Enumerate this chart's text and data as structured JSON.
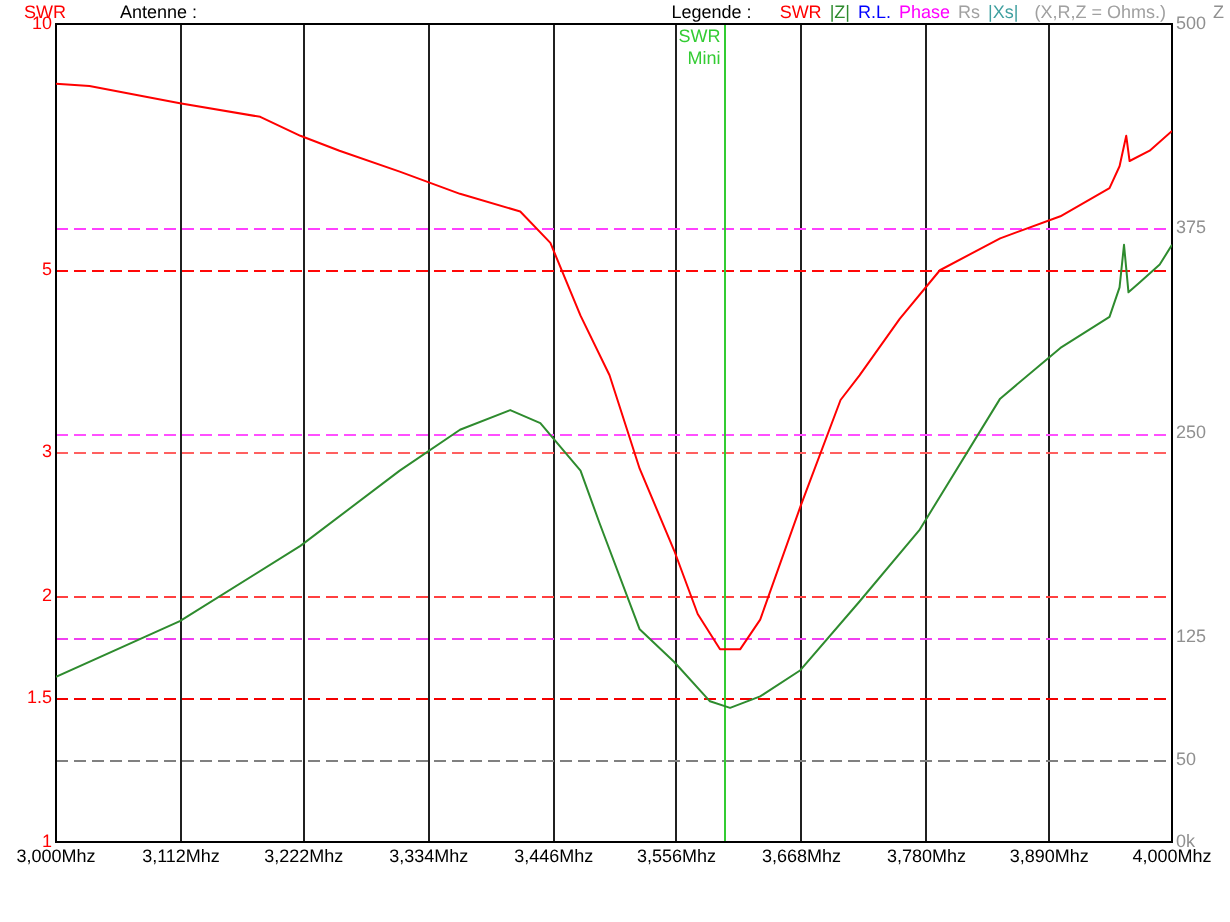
{
  "chart_data": {
    "type": "line",
    "ylabel": "SWR",
    "y2label": "Z",
    "legend_title": "Legende :",
    "legend": "top right",
    "annotations": [
      "Antenne :",
      "(X,R,Z = Ohms.)"
    ],
    "xlim": [
      3000,
      4000
    ],
    "xticks": [
      {
        "value": 3000,
        "label": "3,000Mhz"
      },
      {
        "value": 3112,
        "label": "3,112Mhz"
      },
      {
        "value": 3222,
        "label": "3,222Mhz"
      },
      {
        "value": 3334,
        "label": "3,334Mhz"
      },
      {
        "value": 3446,
        "label": "3,446Mhz"
      },
      {
        "value": 3556,
        "label": "3,556Mhz"
      },
      {
        "value": 3668,
        "label": "3,668Mhz"
      },
      {
        "value": 3780,
        "label": "3,780Mhz"
      },
      {
        "value": 3890,
        "label": "3,890Mhz"
      },
      {
        "value": 4000,
        "label": "4,000Mhz"
      }
    ],
    "log": "y",
    "ylim": [
      1,
      10
    ],
    "yticks": [
      1,
      1.5,
      2,
      3,
      5,
      10
    ],
    "y2lim": [
      0,
      500
    ],
    "y2ticks": [
      {
        "value": 0,
        "label": "0k"
      },
      50,
      125,
      250,
      375,
      500
    ],
    "grid": "x",
    "series": [
      {
        "name": "SWR",
        "color": "#ff0000",
        "x": [
          3000,
          3030,
          3111,
          3183,
          3219,
          3254,
          3308,
          3362,
          3416,
          3443,
          3470,
          3496,
          3523,
          3554,
          3575,
          3595,
          3613,
          3631,
          3667,
          3703,
          3720,
          3756,
          3792,
          3846,
          3900,
          3944,
          3953,
          3959,
          3962,
          3980,
          4000
        ],
        "values": [
          8.45,
          8.4,
          8.0,
          7.7,
          7.3,
          7.0,
          6.6,
          6.2,
          5.9,
          5.4,
          4.4,
          3.72,
          2.86,
          2.27,
          1.9,
          1.72,
          1.72,
          1.87,
          2.57,
          3.47,
          3.72,
          4.36,
          5.0,
          5.47,
          5.82,
          6.3,
          6.7,
          7.3,
          6.8,
          7.0,
          7.4
        ]
      },
      {
        "name": "|Z|",
        "color": "#2e8b2e",
        "axis": "y2",
        "x": [
          3000,
          3111,
          3219,
          3308,
          3362,
          3407,
          3434,
          3470,
          3487,
          3523,
          3554,
          3586,
          3604,
          3631,
          3667,
          3720,
          3774,
          3846,
          3900,
          3944,
          3953,
          3957,
          3961,
          3971,
          3989,
          4000
        ],
        "values": [
          101,
          135,
          181,
          227,
          252,
          264,
          256,
          227,
          195,
          130,
          110,
          86,
          82,
          89,
          105,
          147,
          191,
          271,
          302,
          321,
          339,
          365,
          336,
          342,
          353,
          365
        ]
      },
      {
        "name": "R.L.",
        "color": "#0000ff"
      },
      {
        "name": "Phase",
        "color": "#ff00ff"
      },
      {
        "name": "Rs",
        "color": "#a0a0a0"
      },
      {
        "name": "|Xs|",
        "color": "#40a0a0"
      }
    ],
    "ref_lines": [
      {
        "axis": "y",
        "value": 5,
        "color": "#ff0808",
        "line_style": "dashed"
      },
      {
        "axis": "y",
        "value": 3,
        "color": "#ff6060",
        "line_style": "dashed"
      },
      {
        "axis": "y",
        "value": 2,
        "color": "#ff4040",
        "line_style": "dashed"
      },
      {
        "axis": "y",
        "value": 1.5,
        "color": "#f40000",
        "line_style": "dashed"
      },
      {
        "axis": "y2",
        "value": 375,
        "color": "#ff40ff",
        "line_style": "dashed"
      },
      {
        "axis": "y2",
        "value": 250,
        "color": "#ff50ff",
        "line_style": "dashed"
      },
      {
        "axis": "y2",
        "value": 125,
        "color": "#f040f0",
        "line_style": "dashed"
      },
      {
        "axis": "y2",
        "value": 50,
        "color": "#808080",
        "line_style": "dashed"
      },
      {
        "axis": "x",
        "value": 3599,
        "label": "SWR Mini",
        "color": "#33cc33",
        "line_style": "solid"
      }
    ]
  }
}
